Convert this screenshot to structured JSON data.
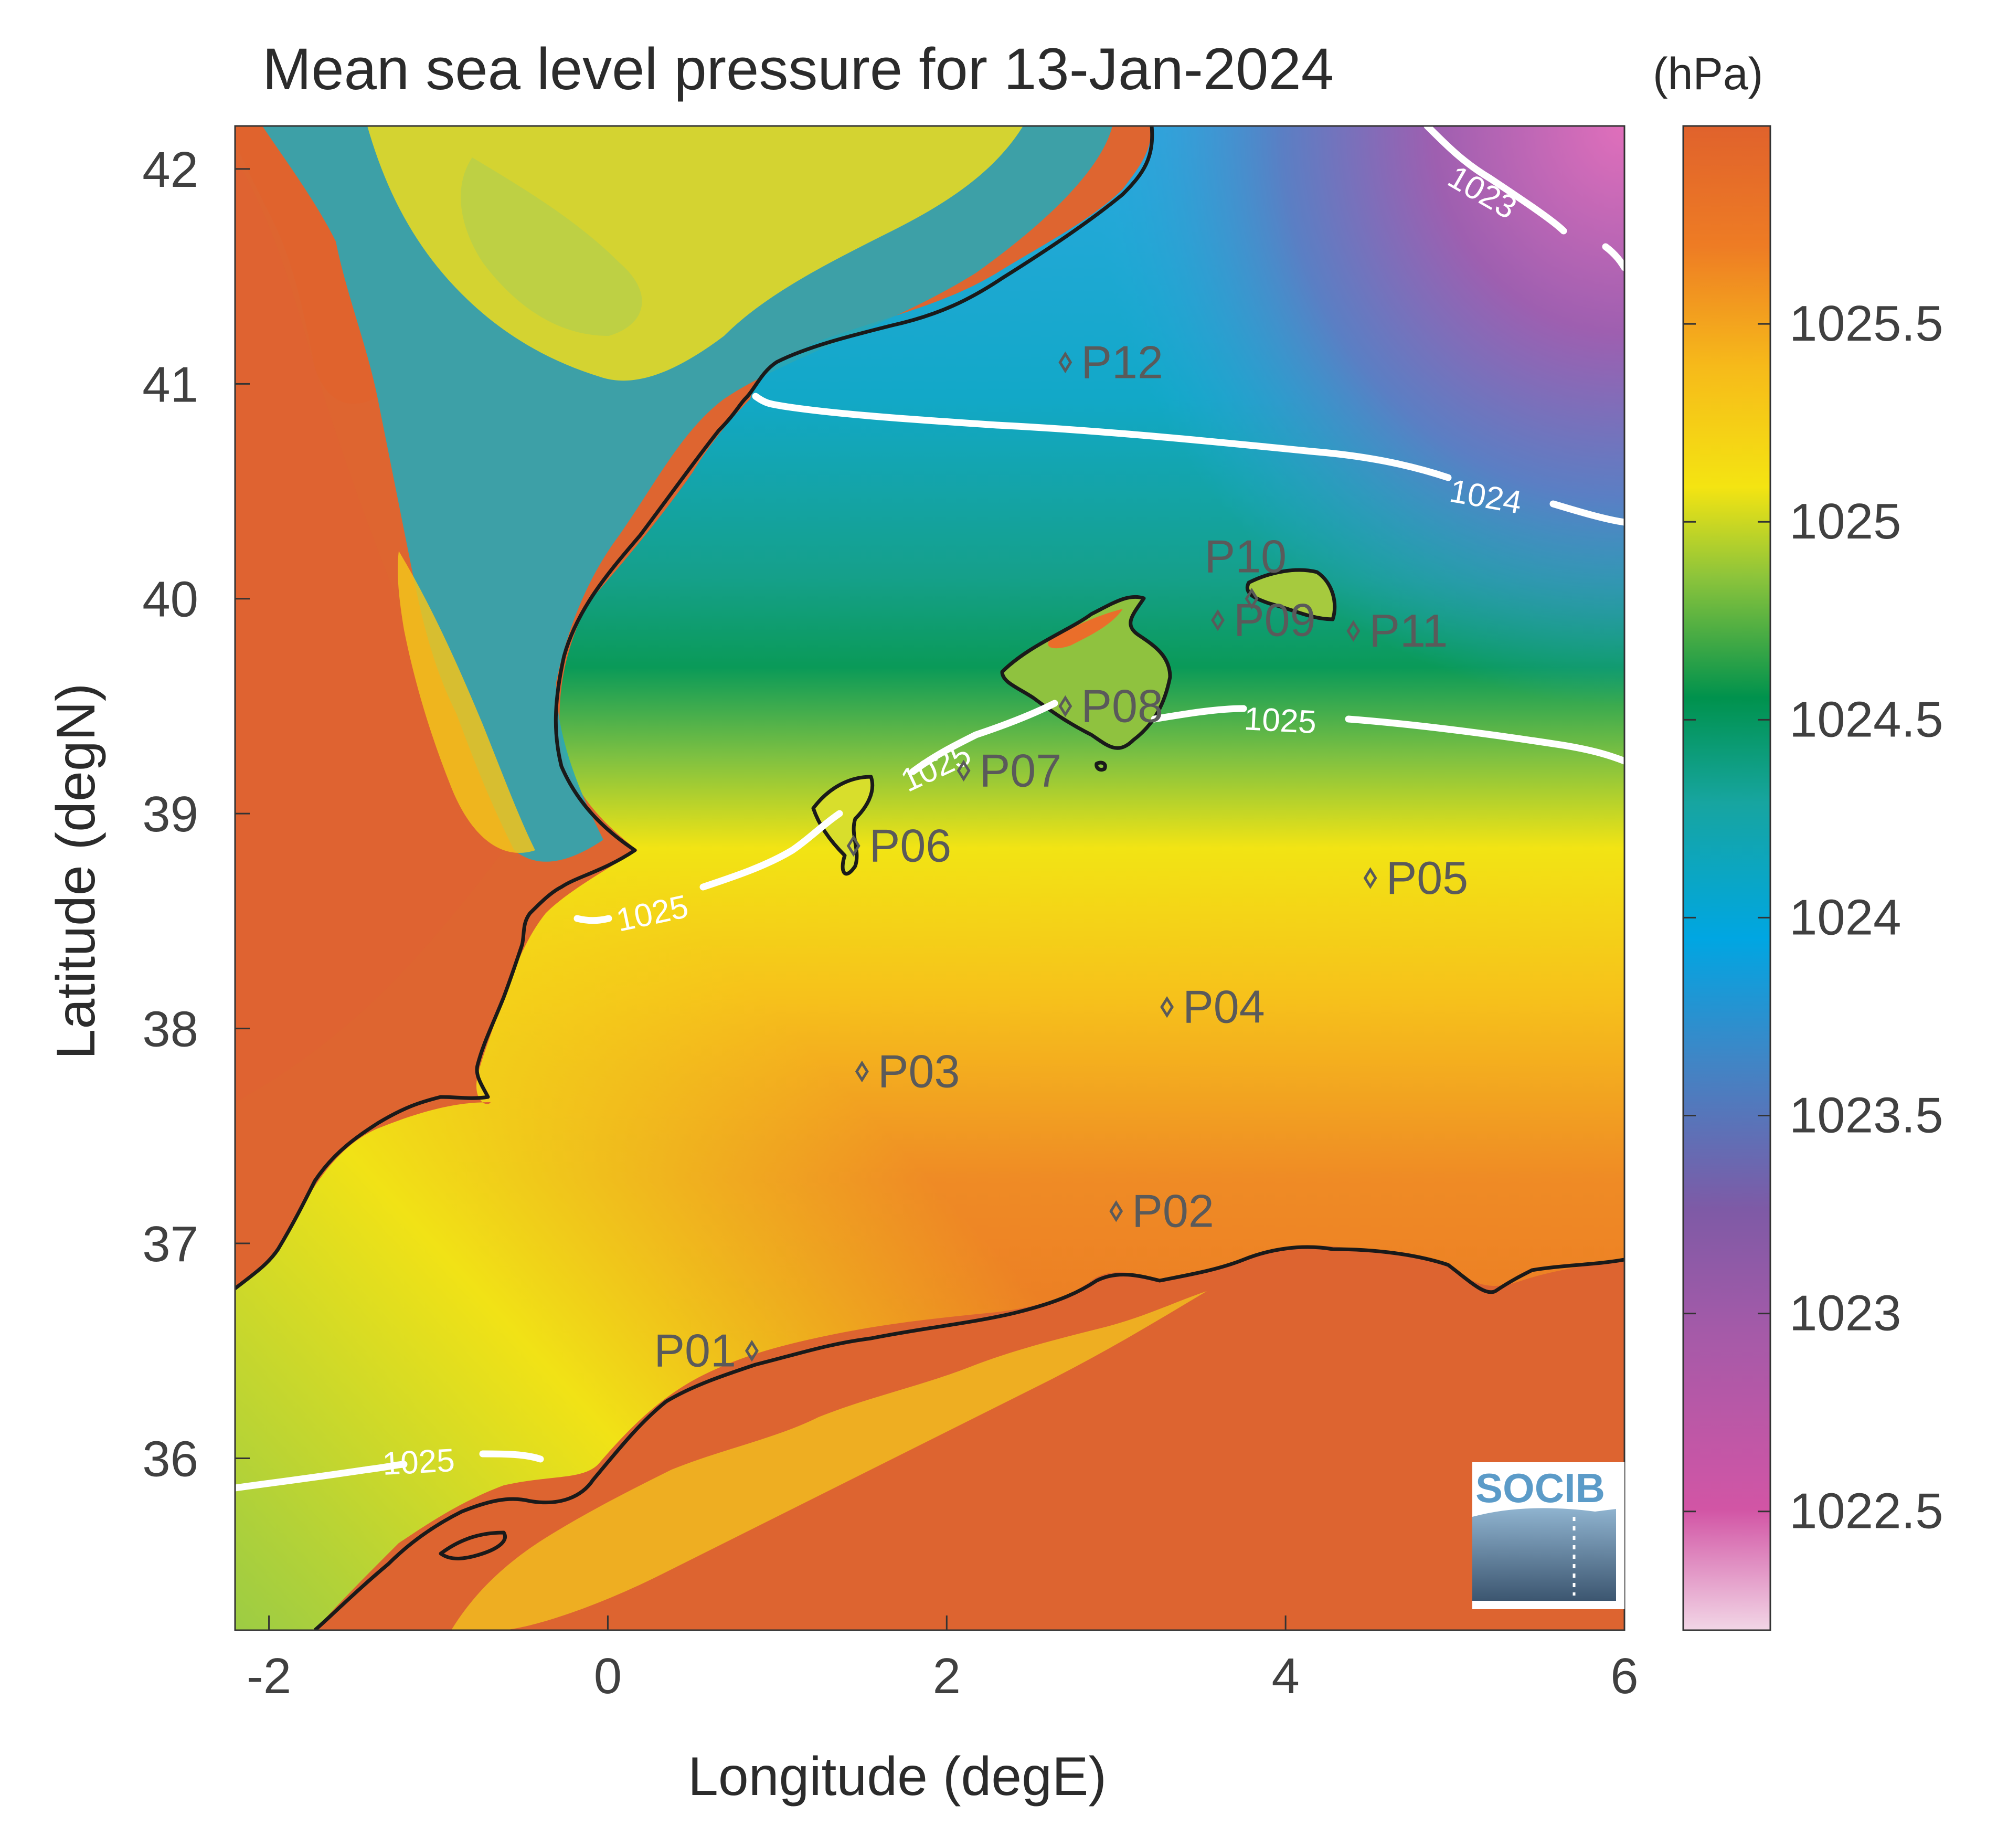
{
  "figure": {
    "title": "Mean sea level pressure for 13-Jan-2024",
    "unit_label": "(hPa)",
    "xlabel": "Longitude (degE)",
    "ylabel": "Latitude (degN)",
    "logo_text": "SOCIB"
  },
  "map_data": {
    "type": "heatmap",
    "field": "mean sea level pressure",
    "xlim": [
      -2.2,
      6.0
    ],
    "ylim": [
      35.2,
      42.2
    ],
    "x_ticks": [
      -2,
      0,
      2,
      4,
      6
    ],
    "x_tick_labels": [
      "-2",
      "0",
      "2",
      "4",
      "6"
    ],
    "y_ticks": [
      36,
      37,
      38,
      39,
      40,
      41,
      42
    ],
    "y_tick_labels": [
      "36",
      "37",
      "38",
      "39",
      "40",
      "41",
      "42"
    ],
    "colorbar": {
      "range": [
        1022.2,
        1026.0
      ],
      "ticks": [
        1022.5,
        1023,
        1023.5,
        1024,
        1024.5,
        1025,
        1025.5
      ],
      "tick_labels": [
        "1022.5",
        "1023",
        "1023.5",
        "1024",
        "1024.5",
        "1025",
        "1025.5"
      ],
      "colors": [
        "#f2d6e6",
        "#d255a5",
        "#8f56a6",
        "#3f86c6",
        "#00a6e2",
        "#17a5a0",
        "#00924d",
        "#8cc43b",
        "#f4e412",
        "#f6ba1a",
        "#ee7c24",
        "#e0622c"
      ]
    },
    "contours": [
      {
        "level": 1023,
        "label": "1023"
      },
      {
        "level": 1024,
        "label": "1024"
      },
      {
        "level": 1025,
        "label": "1025"
      }
    ],
    "stations": [
      {
        "name": "P01",
        "lon": 0.85,
        "lat": 36.5
      },
      {
        "name": "P02",
        "lon": 3.0,
        "lat": 37.15
      },
      {
        "name": "P03",
        "lon": 1.5,
        "lat": 37.8
      },
      {
        "name": "P04",
        "lon": 3.3,
        "lat": 38.1
      },
      {
        "name": "P05",
        "lon": 4.5,
        "lat": 38.7
      },
      {
        "name": "P06",
        "lon": 1.45,
        "lat": 38.85
      },
      {
        "name": "P07",
        "lon": 2.1,
        "lat": 39.2
      },
      {
        "name": "P08",
        "lon": 2.7,
        "lat": 39.5
      },
      {
        "name": "P09",
        "lon": 3.6,
        "lat": 39.9
      },
      {
        "name": "P10",
        "lon": 3.8,
        "lat": 40.0
      },
      {
        "name": "P11",
        "lon": 4.4,
        "lat": 39.85
      },
      {
        "name": "P12",
        "lon": 2.7,
        "lat": 41.1
      }
    ]
  }
}
